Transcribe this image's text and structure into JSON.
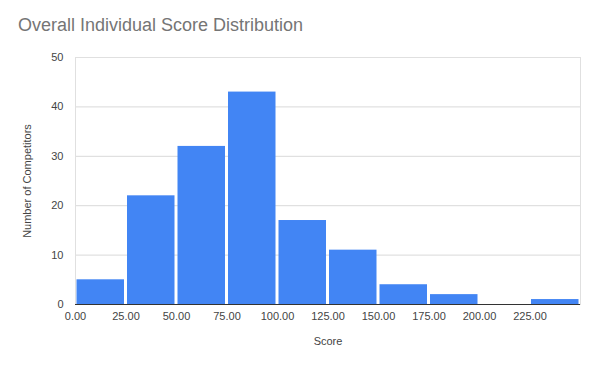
{
  "chart_data": {
    "type": "histogram",
    "title": "Overall Individual Score Distribution",
    "x_label": "Score",
    "y_label": "Number of Competitors",
    "bins": [
      0,
      25,
      50,
      75,
      100,
      125,
      150,
      175,
      200,
      225,
      250
    ],
    "values": [
      5,
      22,
      32,
      43,
      17,
      11,
      4,
      2,
      0,
      1
    ],
    "color": "#4285f4",
    "xlim": [
      0,
      250
    ],
    "xticks": [
      {
        "value": 0,
        "label": "0.00"
      },
      {
        "value": 25,
        "label": "25.00"
      },
      {
        "value": 50,
        "label": "50.00"
      },
      {
        "value": 75,
        "label": "75.00"
      },
      {
        "value": 100,
        "label": "100.00"
      },
      {
        "value": 125,
        "label": "125.00"
      },
      {
        "value": 150,
        "label": "150.00"
      },
      {
        "value": 175,
        "label": "175.00"
      },
      {
        "value": 200,
        "label": "200.00"
      },
      {
        "value": 225,
        "label": "225.00"
      }
    ],
    "ylim": [
      0,
      50
    ],
    "yticks": [
      0,
      10,
      20,
      30,
      40,
      50
    ],
    "grid": true
  }
}
